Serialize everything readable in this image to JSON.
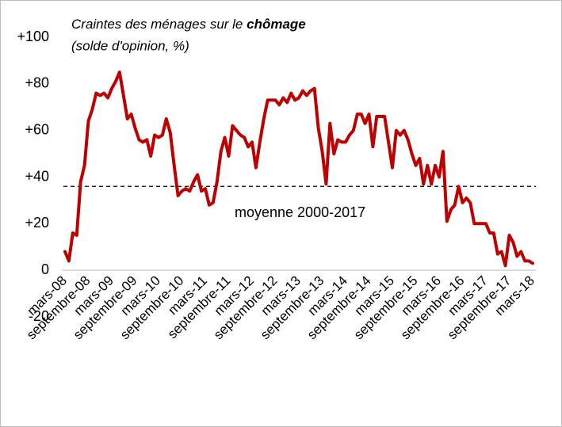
{
  "chart_data": {
    "type": "line",
    "title": "Craintes des ménages sur le",
    "title_emphasis": "chômage",
    "subtitle": "(solde d'opinion, %)",
    "categories": [
      "mars-08",
      null,
      null,
      null,
      null,
      null,
      "septembre-08",
      null,
      null,
      null,
      null,
      null,
      "mars-09",
      null,
      null,
      null,
      null,
      null,
      "septembre-09",
      null,
      null,
      null,
      null,
      null,
      "mars-10",
      null,
      null,
      null,
      null,
      null,
      "septembre-10",
      null,
      null,
      null,
      null,
      null,
      "mars-11",
      null,
      null,
      null,
      null,
      null,
      "septembre-11",
      null,
      null,
      null,
      null,
      null,
      "mars-12",
      null,
      null,
      null,
      null,
      null,
      "septembre-12",
      null,
      null,
      null,
      null,
      null,
      "mars-13",
      null,
      null,
      null,
      null,
      null,
      "septembre-13",
      null,
      null,
      null,
      null,
      null,
      "mars-14",
      null,
      null,
      null,
      null,
      null,
      "septembre-14",
      null,
      null,
      null,
      null,
      null,
      "mars-15",
      null,
      null,
      null,
      null,
      null,
      "septembre-15",
      null,
      null,
      null,
      null,
      null,
      "mars-16",
      null,
      null,
      null,
      null,
      null,
      "septembre-16",
      null,
      null,
      null,
      null,
      null,
      "mars-17",
      null,
      null,
      null,
      null,
      null,
      "septembre-17",
      null,
      null,
      null,
      null,
      null,
      "mars-18"
    ],
    "values": [
      8,
      4,
      16,
      15,
      38,
      45,
      64,
      69,
      76,
      75,
      76,
      74,
      78,
      81,
      85,
      75,
      65,
      67,
      61,
      56,
      55,
      56,
      49,
      58,
      57,
      58,
      65,
      59,
      45,
      32,
      34,
      35,
      34,
      38,
      41,
      34,
      35,
      28,
      29,
      38,
      51,
      57,
      49,
      62,
      60,
      58,
      57,
      53,
      55,
      44,
      55,
      65,
      73,
      73,
      73,
      71,
      74,
      72,
      76,
      73,
      74,
      77,
      75,
      77,
      78,
      61,
      51,
      37,
      63,
      50,
      56,
      55,
      55,
      58,
      60,
      67,
      67,
      63,
      67,
      53,
      66,
      66,
      66,
      55,
      44,
      60,
      58,
      60,
      56,
      50,
      45,
      48,
      37,
      45,
      37,
      45,
      40,
      51,
      21,
      26,
      28,
      36,
      29,
      31,
      29,
      20,
      20,
      20,
      20,
      16,
      16,
      7,
      8,
      2,
      15,
      12,
      6,
      8,
      4,
      4,
      3
    ],
    "color": "#c00000",
    "mean": {
      "value": 36,
      "label": "moyenne 2000-2017"
    },
    "ylim": [
      -20,
      100
    ],
    "yticks": [
      -20,
      0,
      {
        "value": 20,
        "label": "+20"
      },
      {
        "value": 40,
        "label": "+40"
      },
      {
        "value": 60,
        "label": "+60"
      },
      {
        "value": 80,
        "label": "+80"
      },
      {
        "value": 100,
        "label": "+100"
      }
    ],
    "grid": false
  }
}
